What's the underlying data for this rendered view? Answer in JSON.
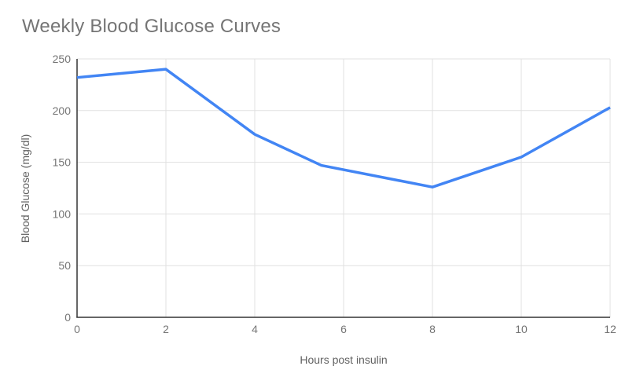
{
  "chart": {
    "title": "Weekly Blood Glucose Curves",
    "xlabel": "Hours post insulin",
    "ylabel": "Blood Glucose (mg/dl)"
  },
  "chart_data": {
    "type": "line",
    "title": "Weekly Blood Glucose Curves",
    "xlabel": "Hours post insulin",
    "ylabel": "Blood Glucose (mg/dl)",
    "x": [
      0,
      2,
      4,
      5.5,
      8,
      10,
      12
    ],
    "values": [
      232,
      240,
      177,
      147,
      126,
      155,
      203
    ],
    "x_ticks": [
      0,
      2,
      4,
      6,
      8,
      10,
      12
    ],
    "y_ticks": [
      0,
      50,
      100,
      150,
      200,
      250
    ],
    "xlim": [
      0,
      12
    ],
    "ylim": [
      0,
      250
    ],
    "grid": true,
    "legend_position": "none"
  },
  "colors": {
    "line": "#4285f4",
    "gridline": "#e0e0e0",
    "axis": "#333333",
    "tick_label": "#757575",
    "title": "#757575",
    "axis_title": "#616161",
    "background": "#ffffff"
  }
}
